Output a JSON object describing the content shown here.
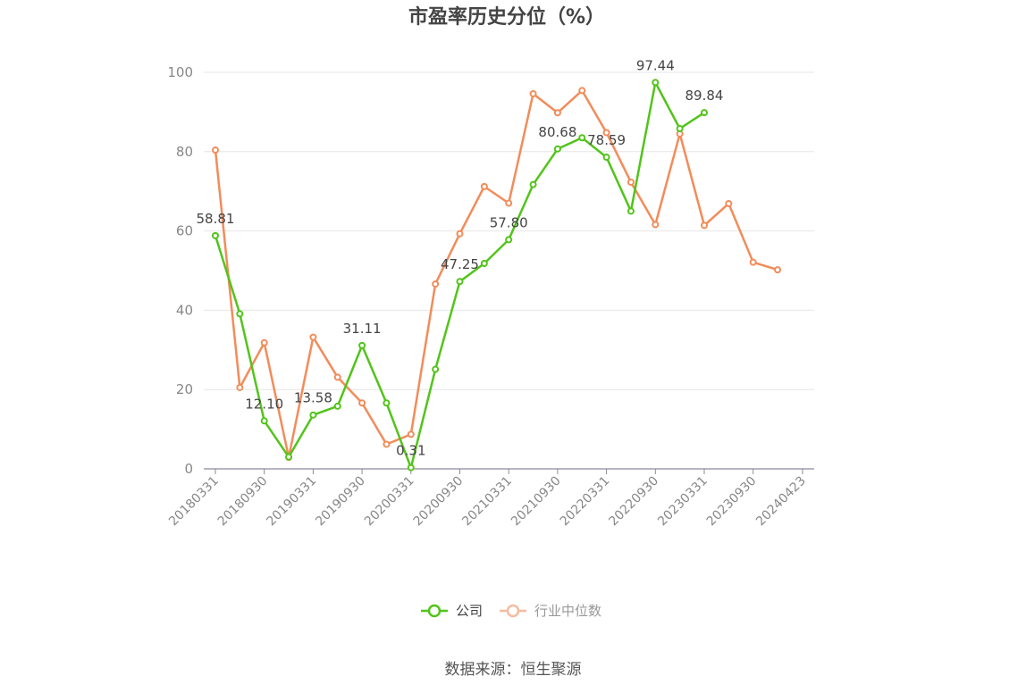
{
  "chart_data": {
    "type": "line",
    "title": "市盈率历史分位（%）",
    "ylim": [
      0,
      100
    ],
    "y_ticks": [
      0,
      20,
      40,
      60,
      80,
      100
    ],
    "grid": true,
    "legend_position": "bottom",
    "x_tick_labels": [
      "20180331",
      "20180930",
      "20190331",
      "20190930",
      "20200331",
      "20200930",
      "20210331",
      "20210930",
      "20220331",
      "20220930",
      "20230331",
      "20230930",
      "20240423"
    ],
    "series": [
      {
        "name": "公司",
        "color": "#52c41a",
        "values": [
          58.81,
          39.1,
          12.1,
          3.0,
          13.58,
          15.8,
          31.11,
          16.6,
          0.31,
          25.1,
          47.25,
          51.8,
          57.8,
          71.7,
          80.68,
          83.5,
          78.59,
          65.0,
          97.44,
          85.8,
          89.84
        ],
        "labels": {
          "0": "58.81",
          "2": "12.10",
          "4": "13.58",
          "6": "31.11",
          "8": "0.31",
          "10": "47.25",
          "12": "57.80",
          "14": "80.68",
          "16": "78.59",
          "18": "97.44",
          "20": "89.84"
        }
      },
      {
        "name": "行业中位数",
        "color": "#f28c5a",
        "values": [
          80.4,
          20.5,
          31.8,
          2.9,
          33.2,
          23.1,
          16.6,
          6.2,
          8.7,
          46.6,
          59.3,
          71.2,
          67.0,
          94.6,
          89.8,
          95.4,
          84.8,
          72.3,
          61.6,
          84.5,
          61.4,
          66.9,
          52.1,
          50.2
        ]
      }
    ]
  },
  "source": "数据来源：恒生聚源"
}
